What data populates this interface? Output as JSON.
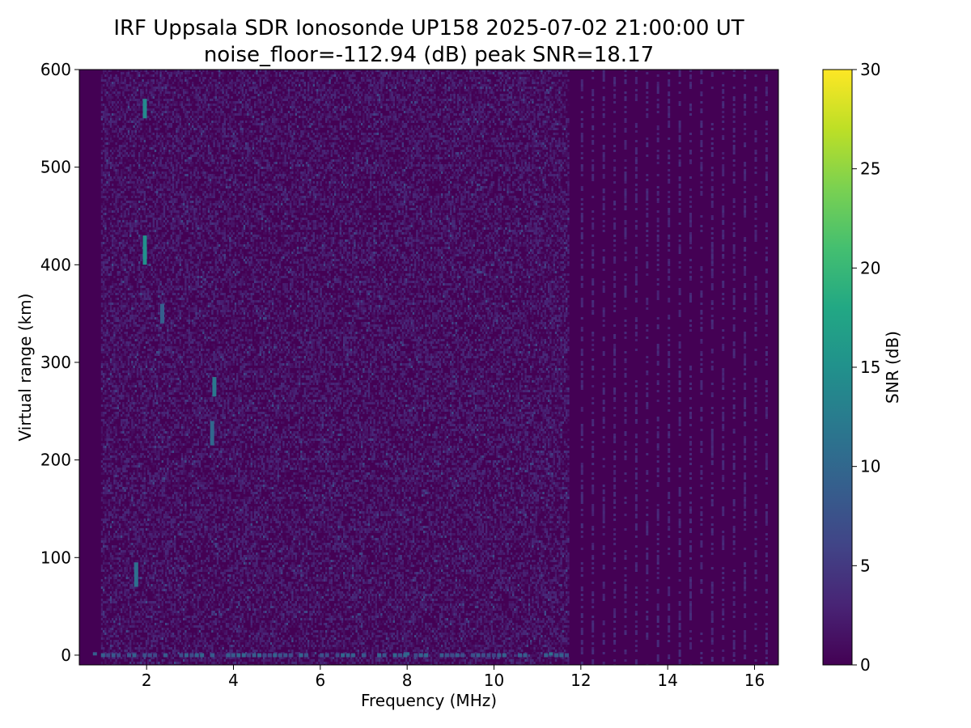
{
  "chart_data": {
    "type": "heatmap",
    "title": "IRF Uppsala SDR Ionosonde UP158 2025-07-02 21:00:00  UT",
    "subtitle": "noise_floor=-112.94 (dB) peak SNR=18.17",
    "xlabel": "Frequency (MHz)",
    "ylabel": "Virtual range (km)",
    "xlim": [
      0.45,
      16.55
    ],
    "ylim": [
      -10,
      600
    ],
    "xticks": [
      2,
      4,
      6,
      8,
      10,
      12,
      14,
      16
    ],
    "yticks": [
      0,
      100,
      200,
      300,
      400,
      500,
      600
    ],
    "colorbar": {
      "label": "SNR (dB)",
      "range": [
        0,
        30
      ],
      "ticks": [
        0,
        5,
        10,
        15,
        20,
        25,
        30
      ],
      "colormap": "viridis"
    },
    "grid": false,
    "background_value": 0,
    "notable_features": [
      {
        "x": 1.95,
        "y_from": 550,
        "y_to": 570,
        "snr": 14
      },
      {
        "x": 1.95,
        "y_from": 400,
        "y_to": 430,
        "snr": 15
      },
      {
        "x": 1.75,
        "y_from": 70,
        "y_to": 95,
        "snr": 11
      },
      {
        "x": 3.55,
        "y_from": 265,
        "y_to": 285,
        "snr": 12
      },
      {
        "x": 3.5,
        "y_from": 215,
        "y_to": 240,
        "snr": 10
      },
      {
        "x": 2.35,
        "y_from": 340,
        "y_to": 360,
        "snr": 9
      },
      {
        "x": 0.8,
        "y_from": 0,
        "y_to": 3,
        "snr": 9
      },
      {
        "x": 8.0,
        "y_from": 0,
        "y_to": 3,
        "snr": 10
      },
      {
        "x": 11.3,
        "y_from": 0,
        "y_to": 3,
        "snr": 11
      }
    ],
    "sounding_band_mhz": [
      0.95,
      11.7
    ],
    "discrete_channel_band_mhz": [
      12.0,
      16.3
    ]
  },
  "colors": {
    "viridis_low": "#440154",
    "viridis_high": "#fde725",
    "axis": "#000000"
  }
}
